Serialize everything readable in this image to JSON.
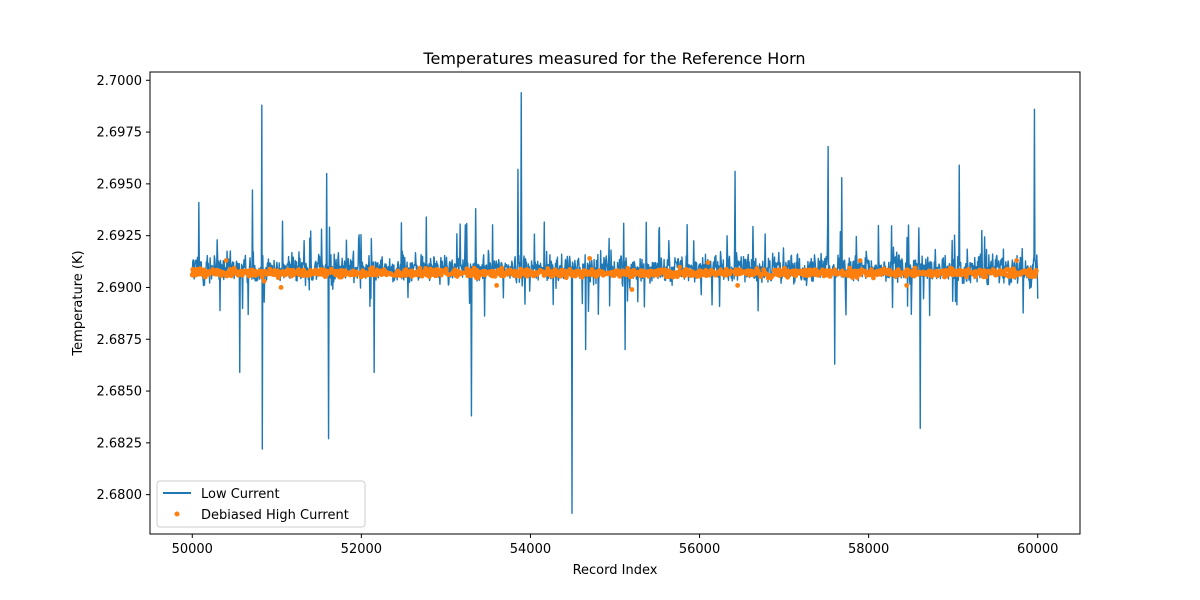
{
  "chart_data": {
    "type": "line",
    "title": "Temperatures measured for the Reference Horn",
    "xlabel": "Record Index",
    "ylabel": "Temperature (K)",
    "xlim": [
      49500,
      60500
    ],
    "ylim": [
      2.6781,
      2.7004
    ],
    "xticks": [
      50000,
      52000,
      54000,
      56000,
      58000,
      60000
    ],
    "xtick_labels": [
      "50000",
      "52000",
      "54000",
      "56000",
      "58000",
      "60000"
    ],
    "yticks": [
      2.68,
      2.6825,
      2.685,
      2.6875,
      2.69,
      2.6925,
      2.695,
      2.6975,
      2.7
    ],
    "ytick_labels": [
      "2.6800",
      "2.6825",
      "2.6850",
      "2.6875",
      "2.6900",
      "2.6925",
      "2.6950",
      "2.6975",
      "2.7000"
    ],
    "legend": {
      "placement": "lower-left"
    },
    "series": [
      {
        "name": "Low Current",
        "style": "line",
        "color": "#1f77b4",
        "x_range": [
          50000,
          60000
        ],
        "baseline": 2.6909,
        "band_low": 2.6895,
        "band_high": 2.6922,
        "spikes": [
          {
            "x": 50080,
            "y": 2.6941
          },
          {
            "x": 50560,
            "y": 2.6859
          },
          {
            "x": 50710,
            "y": 2.6947
          },
          {
            "x": 50820,
            "y": 2.6988
          },
          {
            "x": 50830,
            "y": 2.6822
          },
          {
            "x": 51070,
            "y": 2.6932
          },
          {
            "x": 51590,
            "y": 2.6955
          },
          {
            "x": 51610,
            "y": 2.6827
          },
          {
            "x": 52150,
            "y": 2.6859
          },
          {
            "x": 52770,
            "y": 2.6934
          },
          {
            "x": 53300,
            "y": 2.6838
          },
          {
            "x": 53350,
            "y": 2.6938
          },
          {
            "x": 53850,
            "y": 2.6957
          },
          {
            "x": 53890,
            "y": 2.6994
          },
          {
            "x": 54490,
            "y": 2.6791
          },
          {
            "x": 54650,
            "y": 2.687
          },
          {
            "x": 55120,
            "y": 2.687
          },
          {
            "x": 56420,
            "y": 2.6956
          },
          {
            "x": 57520,
            "y": 2.6968
          },
          {
            "x": 57600,
            "y": 2.6863
          },
          {
            "x": 57680,
            "y": 2.6953
          },
          {
            "x": 58610,
            "y": 2.6832
          },
          {
            "x": 59070,
            "y": 2.6959
          },
          {
            "x": 59960,
            "y": 2.6986
          }
        ]
      },
      {
        "name": "Debiased High Current",
        "style": "scatter",
        "color": "#ff7f0e",
        "x_range": [
          50000,
          60000
        ],
        "center": 2.6907,
        "spread": 0.0004,
        "outliers": [
          {
            "x": 50400,
            "y": 2.6913
          },
          {
            "x": 50850,
            "y": 2.6903
          },
          {
            "x": 51050,
            "y": 2.69
          },
          {
            "x": 53600,
            "y": 2.6901
          },
          {
            "x": 54700,
            "y": 2.6914
          },
          {
            "x": 55200,
            "y": 2.6899
          },
          {
            "x": 56100,
            "y": 2.6912
          },
          {
            "x": 56450,
            "y": 2.6901
          },
          {
            "x": 57900,
            "y": 2.6913
          },
          {
            "x": 58450,
            "y": 2.6901
          },
          {
            "x": 59750,
            "y": 2.6913
          }
        ]
      }
    ]
  }
}
